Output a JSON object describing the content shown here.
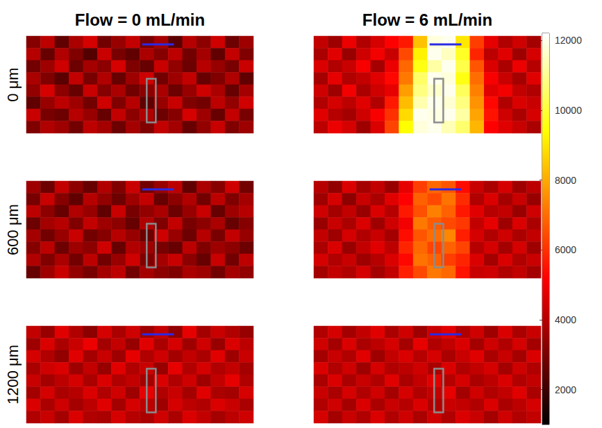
{
  "chart_data": {
    "type": "heatmap",
    "column_titles": [
      "Flow = 0 mL/min",
      "Flow = 6 mL/min"
    ],
    "row_labels": [
      "0 μm",
      "600 μm",
      "1200 μm"
    ],
    "colorbar": {
      "range": [
        1000,
        12200
      ],
      "ticks": [
        2000,
        4000,
        6000,
        8000,
        10000,
        12000
      ]
    },
    "cells": [
      [
        [
          [
            3200,
            4100,
            2600,
            3800,
            4500,
            2900,
            3500,
            4200,
            3000,
            3700,
            2500,
            4000,
            3300,
            4400,
            2800,
            3600
          ],
          [
            4000,
            2700,
            3900,
            3100,
            2400,
            4300,
            3000,
            2600,
            3800,
            3200,
            4100,
            2900,
            3700,
            2600,
            4200,
            3100
          ],
          [
            2900,
            3600,
            4400,
            2800,
            3700,
            3300,
            4500,
            3100,
            2700,
            4300,
            3400,
            2800,
            4000,
            3500,
            3000,
            4300
          ],
          [
            3800,
            3100,
            2500,
            4200,
            3000,
            3900,
            2700,
            3600,
            4400,
            2900,
            3600,
            4200,
            2700,
            3100,
            3900,
            2600
          ],
          [
            3400,
            4500,
            3300,
            2700,
            4300,
            3200,
            3800,
            2900,
            3300,
            3800,
            2800,
            3500,
            4400,
            3800,
            2700,
            3700
          ],
          [
            2600,
            3500,
            4100,
            3600,
            2900,
            4400,
            3100,
            4000,
            2600,
            3500,
            4300,
            3100,
            2900,
            4100,
            3400,
            4400
          ],
          [
            4300,
            3000,
            2800,
            4000,
            3500,
            2700,
            4200,
            3300,
            3900,
            2800,
            3200,
            4500,
            3600,
            2700,
            4200,
            3000
          ],
          [
            3100,
            3900,
            3600,
            2900,
            4100,
            3700,
            2800,
            3700,
            3100,
            4200,
            3700,
            2700,
            3400,
            4300,
            3100,
            3600
          ]
        ],
        [
          [
            4200,
            3600,
            4900,
            3900,
            4500,
            5200,
            5600,
            8400,
            11800,
            12000,
            9000,
            6200,
            4800,
            3900,
            4400,
            3700
          ],
          [
            3800,
            4700,
            3500,
            4400,
            5000,
            4300,
            6400,
            9200,
            12000,
            11500,
            9800,
            5800,
            4100,
            4700,
            3600,
            4500
          ],
          [
            4600,
            3900,
            4300,
            5100,
            3700,
            4900,
            6900,
            9600,
            11200,
            12000,
            10200,
            6600,
            4600,
            3800,
            4900,
            4000
          ],
          [
            3700,
            4800,
            3900,
            4200,
            4700,
            5300,
            7200,
            10500,
            12000,
            11800,
            9600,
            7000,
            5100,
            4300,
            3700,
            4700
          ],
          [
            4400,
            3600,
            5000,
            3800,
            4400,
            4800,
            7800,
            10800,
            11600,
            12000,
            10400,
            7300,
            4700,
            5000,
            4200,
            3900
          ],
          [
            3900,
            4500,
            4100,
            4700,
            3900,
            5600,
            8300,
            11300,
            12000,
            11700,
            10800,
            7600,
            5300,
            3900,
            4600,
            4300
          ],
          [
            4700,
            4000,
            3700,
            4400,
            5100,
            6000,
            8800,
            12000,
            11900,
            12000,
            11200,
            7900,
            5500,
            4400,
            3800,
            4500
          ],
          [
            4100,
            4900,
            4500,
            3600,
            4600,
            6300,
            9400,
            11800,
            12000,
            11400,
            10600,
            8200,
            5200,
            4700,
            4300,
            3800
          ]
        ]
      ],
      [
        [
          [
            3600,
            2800,
            4200,
            3300,
            2700,
            3900,
            3100,
            4300,
            2900,
            3500,
            4100,
            2600,
            3800,
            3200,
            4400,
            2900
          ],
          [
            3000,
            4300,
            3200,
            2600,
            4000,
            3400,
            2800,
            3600,
            4200,
            2700,
            3300,
            3900,
            2900,
            4100,
            3100,
            3700
          ],
          [
            4100,
            3300,
            2700,
            3900,
            3500,
            2600,
            4300,
            3000,
            3400,
            3800,
            2800,
            3500,
            4300,
            2700,
            3600,
            4000
          ],
          [
            2800,
            3700,
            4000,
            3100,
            4200,
            3600,
            3300,
            2700,
            3900,
            3100,
            4200,
            3000,
            3300,
            3800,
            2700,
            3200
          ],
          [
            3700,
            2900,
            3500,
            4300,
            2900,
            3200,
            4000,
            3500,
            2800,
            4400,
            3500,
            2800,
            4000,
            3000,
            4200,
            3500
          ],
          [
            3200,
            4100,
            2800,
            3600,
            3300,
            4400,
            2700,
            3900,
            3600,
            3000,
            2700,
            4100,
            3100,
            3600,
            3300,
            2800
          ],
          [
            3900,
            3100,
            3800,
            2900,
            4100,
            2900,
            3500,
            4400,
            3100,
            3700,
            4300,
            3300,
            2700,
            4300,
            2900,
            4100
          ],
          [
            2700,
            3600,
            4300,
            3400,
            3000,
            3700,
            4100,
            2900,
            3700,
            3300,
            3100,
            3800,
            3600,
            2900,
            3700,
            3400
          ]
        ],
        [
          [
            4000,
            3400,
            4600,
            3700,
            4200,
            3500,
            4800,
            6200,
            6900,
            6600,
            5400,
            4300,
            3800,
            4500,
            3600,
            4100
          ],
          [
            3600,
            4500,
            3300,
            4300,
            3800,
            4700,
            5200,
            6800,
            6400,
            7100,
            5900,
            3900,
            4600,
            3700,
            4300,
            3500
          ],
          [
            4400,
            3700,
            4200,
            3500,
            4600,
            4000,
            5600,
            6500,
            7300,
            6800,
            5600,
            4700,
            4000,
            4200,
            3500,
            4400
          ],
          [
            3500,
            4300,
            3800,
            4600,
            3600,
            4400,
            5000,
            7200,
            6700,
            6400,
            6100,
            4200,
            4800,
            3600,
            4600,
            3800
          ],
          [
            4200,
            3600,
            4500,
            3900,
            4300,
            3700,
            5400,
            6600,
            7000,
            7400,
            5700,
            4500,
            3900,
            4400,
            3800,
            4200
          ],
          [
            3800,
            4600,
            3500,
            4200,
            4700,
            4100,
            5800,
            6900,
            6300,
            6800,
            6300,
            4000,
            4500,
            3700,
            4500,
            3600
          ],
          [
            4500,
            3900,
            4300,
            3600,
            4000,
            4600,
            5300,
            7100,
            6800,
            6200,
            5800,
            4600,
            3700,
            4600,
            3900,
            4300
          ],
          [
            3700,
            4200,
            3900,
            4500,
            3700,
            4200,
            5700,
            6400,
            7200,
            6900,
            5500,
            4300,
            4400,
            3900,
            4200,
            3700
          ]
        ]
      ],
      [
        [
          [
            4200,
            3500,
            4700,
            3900,
            3300,
            4500,
            3800,
            4400,
            3600,
            4200,
            3400,
            4800,
            3700,
            4300,
            3900,
            3500
          ],
          [
            3600,
            4600,
            3800,
            4300,
            4900,
            3700,
            4200,
            3500,
            4700,
            3800,
            4500,
            3600,
            4400,
            3500,
            4600,
            4100
          ],
          [
            4500,
            3900,
            3400,
            4700,
            3700,
            4300,
            3600,
            4800,
            3900,
            4400,
            3700,
            4200,
            3800,
            4700,
            3600,
            4300
          ],
          [
            3800,
            4400,
            4600,
            3600,
            4200,
            3500,
            4700,
            3900,
            4300,
            3500,
            4800,
            3900,
            4500,
            3900,
            4200,
            3700
          ],
          [
            4300,
            3700,
            4100,
            4500,
            3800,
            4600,
            3900,
            4200,
            3700,
            4600,
            3900,
            4400,
            3600,
            4200,
            4800,
            3900
          ],
          [
            3700,
            4500,
            3800,
            4000,
            4600,
            3900,
            4400,
            3600,
            4800,
            3900,
            4300,
            3700,
            4700,
            3800,
            3700,
            4500
          ],
          [
            4600,
            3800,
            4400,
            3700,
            4100,
            4700,
            3700,
            4500,
            4100,
            3600,
            4500,
            4100,
            3900,
            4600,
            4300,
            3800
          ],
          [
            3900,
            4300,
            3700,
            4600,
            3900,
            3800,
            4500,
            4000,
            3800,
            4400,
            3800,
            4600,
            4200,
            3700,
            4100,
            4400
          ]
        ],
        [
          [
            3900,
            4500,
            3700,
            4200,
            4700,
            3800,
            4400,
            3600,
            4300,
            4700,
            3900,
            4400,
            3600,
            4600,
            3800,
            4300
          ],
          [
            4400,
            3700,
            4600,
            3800,
            4100,
            4500,
            3700,
            4800,
            3900,
            4200,
            4600,
            3700,
            4400,
            3900,
            4500,
            3700
          ],
          [
            3700,
            4300,
            3900,
            4700,
            3600,
            4200,
            4600,
            4000,
            4500,
            3800,
            4300,
            4700,
            3800,
            4300,
            3700,
            4600
          ],
          [
            4600,
            3900,
            4400,
            3600,
            4500,
            3900,
            4100,
            4400,
            3800,
            4600,
            3900,
            4200,
            4500,
            3700,
            4400,
            3900
          ],
          [
            3800,
            4600,
            3800,
            4300,
            3900,
            4700,
            3800,
            4200,
            4700,
            4000,
            4500,
            3800,
            4100,
            4600,
            3900,
            4200
          ],
          [
            4300,
            3800,
            4500,
            3900,
            4400,
            3700,
            4500,
            3900,
            4200,
            4800,
            3700,
            4400,
            3900,
            4200,
            4700,
            3800
          ],
          [
            3900,
            4400,
            3700,
            4600,
            3800,
            4300,
            4000,
            4600,
            3900,
            4300,
            4200,
            3900,
            4600,
            3800,
            4100,
            4500
          ],
          [
            4500,
            3700,
            4300,
            3900,
            4600,
            3900,
            4400,
            3800,
            4400,
            3900,
            4600,
            4300,
            3700,
            4400,
            3900,
            4200
          ]
        ]
      ]
    ]
  }
}
